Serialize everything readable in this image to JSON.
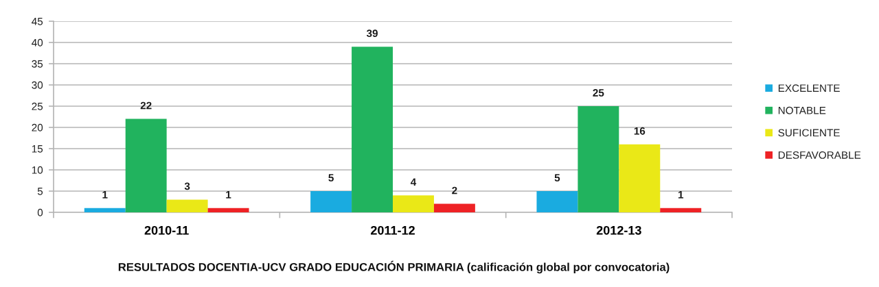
{
  "chart_data": {
    "type": "bar",
    "title": "RESULTADOS DOCENTIA-UCV GRADO EDUCACIÓN PRIMARIA (calificación global por convocatoria)",
    "categories": [
      "2010-11",
      "2011-12",
      "2012-13"
    ],
    "series": [
      {
        "name": "EXCELENTE",
        "color": "#1aabe0",
        "values": [
          1,
          5,
          5
        ]
      },
      {
        "name": "NOTABLE",
        "color": "#21b35e",
        "values": [
          22,
          39,
          25
        ]
      },
      {
        "name": "SUFICIENTE",
        "color": "#eae817",
        "values": [
          3,
          4,
          16
        ]
      },
      {
        "name": "DESFAVORABLE",
        "color": "#ee2225",
        "values": [
          1,
          2,
          1
        ]
      }
    ],
    "ylim": [
      0,
      45
    ],
    "yticks": [
      0,
      5,
      10,
      15,
      20,
      25,
      30,
      35,
      40,
      45
    ],
    "grid": "y",
    "legend": "right",
    "data_labels": true
  }
}
